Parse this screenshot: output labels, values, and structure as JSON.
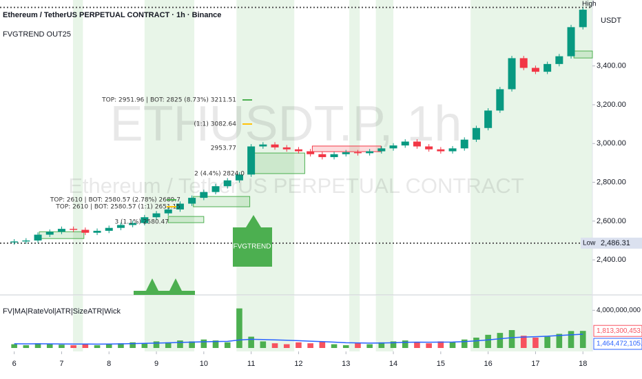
{
  "header": {
    "title": "Ethereum / TetherUS PERPETUAL CONTRACT · 1h · Binance",
    "indicator": "FVGTREND OUT25",
    "currency": "USDT"
  },
  "chart_data": [
    {
      "type": "candlestick",
      "watermark": "ETHUSDT.P, 1h",
      "watermark_subtitle": "Ethereum / TetherUS PERPETUAL CONTRACT",
      "x": [
        6,
        6.25,
        6.5,
        6.75,
        7,
        7.25,
        7.5,
        7.75,
        8,
        8.25,
        8.5,
        8.75,
        9,
        9.25,
        9.5,
        9.75,
        10,
        10.25,
        10.5,
        10.75,
        11,
        11.25,
        11.5,
        11.75,
        12,
        12.25,
        12.5,
        12.75,
        13,
        13.25,
        13.5,
        13.75,
        14,
        14.25,
        14.5,
        14.75,
        15,
        15.25,
        15.5,
        15.75,
        16,
        16.25,
        16.5,
        16.75,
        17,
        17.25,
        17.5,
        17.75,
        18
      ],
      "open": [
        2490,
        2495,
        2500,
        2530,
        2545,
        2560,
        2555,
        2540,
        2550,
        2565,
        2580,
        2590,
        2620,
        2640,
        2660,
        2690,
        2720,
        2750,
        2780,
        2810,
        2840,
        2985,
        2995,
        2980,
        2970,
        2960,
        2945,
        2930,
        2945,
        2955,
        2950,
        2960,
        2975,
        2990,
        3010,
        2985,
        2970,
        2960,
        2975,
        3020,
        3080,
        3170,
        3280,
        3440,
        3390,
        3370,
        3410,
        3450,
        3600
      ],
      "high": [
        2507,
        2512,
        2542,
        2557,
        2572,
        2572,
        2567,
        2562,
        2577,
        2592,
        2602,
        2632,
        2652,
        2672,
        2702,
        2732,
        2762,
        2792,
        2822,
        2852,
        2997,
        3007,
        3007,
        2992,
        2982,
        2972,
        2957,
        2957,
        2967,
        2967,
        2972,
        2987,
        3002,
        3022,
        3022,
        2997,
        2982,
        2987,
        3032,
        3092,
        3182,
        3292,
        3452,
        3452,
        3402,
        3422,
        3462,
        3612,
        3702
      ],
      "low": [
        2478,
        2483,
        2488,
        2518,
        2533,
        2543,
        2528,
        2528,
        2538,
        2553,
        2568,
        2578,
        2608,
        2628,
        2648,
        2678,
        2708,
        2738,
        2768,
        2798,
        2828,
        2973,
        2968,
        2958,
        2948,
        2933,
        2918,
        2918,
        2933,
        2938,
        2938,
        2948,
        2963,
        2978,
        2973,
        2958,
        2948,
        2948,
        2963,
        3008,
        3068,
        3158,
        3268,
        3378,
        3358,
        3358,
        3398,
        3438,
        3588
      ],
      "close": [
        2495,
        2500,
        2530,
        2545,
        2560,
        2555,
        2540,
        2550,
        2565,
        2580,
        2590,
        2620,
        2640,
        2660,
        2690,
        2720,
        2750,
        2780,
        2810,
        2840,
        2985,
        2995,
        2980,
        2970,
        2960,
        2945,
        2930,
        2945,
        2955,
        2950,
        2960,
        2975,
        2990,
        3010,
        2985,
        2970,
        2960,
        2975,
        3020,
        3080,
        3170,
        3280,
        3440,
        3390,
        3370,
        3410,
        3450,
        3600,
        3690
      ],
      "up_color": "#089981",
      "down_color": "#f23645",
      "xlim": [
        5.7,
        18.2
      ],
      "xticks": [
        6,
        7,
        8,
        9,
        10,
        11,
        12,
        13,
        14,
        15,
        16,
        17,
        18
      ],
      "ylim": [
        2230,
        3740
      ],
      "yticks": [
        {
          "value": 2400,
          "label": "2,400.00"
        },
        {
          "value": 2600,
          "label": "2,600.00"
        },
        {
          "value": 2800,
          "label": "2,800.00"
        },
        {
          "value": 3000,
          "label": "3,000.00"
        },
        {
          "value": 3200,
          "label": "3,200.00"
        },
        {
          "value": 3400,
          "label": "3,400.00"
        }
      ],
      "grid": false,
      "sessions": [
        [
          7.24,
          7.45
        ],
        [
          8.75,
          9.8
        ],
        [
          10.69,
          11.91
        ],
        [
          13.07,
          13.29
        ],
        [
          13.63,
          14.0
        ],
        [
          15.63,
          18.2
        ]
      ],
      "session_color": "#4caf50",
      "zones": [
        {
          "x": [
            6.53,
            7.47
          ],
          "y": [
            2510,
            2545
          ],
          "color": "#4caf50"
        },
        {
          "x": [
            9.25,
            10.0
          ],
          "y": [
            2592,
            2624
          ],
          "color": "#4caf50"
        },
        {
          "x": [
            9.78,
            10.97
          ],
          "y": [
            2674,
            2727
          ],
          "color": "#4caf50"
        },
        {
          "x": [
            11.05,
            12.13
          ],
          "y": [
            2845,
            2951
          ],
          "color": "#4caf50"
        },
        {
          "x": [
            12.29,
            13.74
          ],
          "y": [
            2958,
            2987
          ],
          "color": "#f23645"
        },
        {
          "x": [
            17.81,
            18.2
          ],
          "y": [
            3441,
            3477
          ],
          "color": "#4caf50"
        }
      ],
      "annotations": [
        "TOP: 2951.96 | BOT: 2825 (8.73%) 3211.51",
        "(1:1) 3082.64",
        "2953.77",
        "2 (4.4%) 2824.0",
        "TOP: 2610 | BOT: 2580.57 (2.78%) 2689.7",
        "TOP: 2610 | BOT: 2580.57 (1:1) 2651.15",
        "3 (1.1%) 2580.47"
      ],
      "signal_label": "FVGTREND",
      "high_label": "High",
      "low_label": "Low",
      "low_level": {
        "value": 2486.31,
        "label": "2,486.31"
      }
    },
    {
      "type": "bar",
      "title": "FV|MA|RateVol|ATR|SizeATR|Wick",
      "values": [
        400000000.0,
        300000000.0,
        500000000.0,
        400000000.0,
        350000000.0,
        300000000.0,
        400000000.0,
        300000000.0,
        450000000.0,
        500000000.0,
        600000000.0,
        500000000.0,
        700000000.0,
        600000000.0,
        800000000.0,
        700000000.0,
        900000000.0,
        800000000.0,
        600000000.0,
        4200000000.0,
        1200000000.0,
        700000000.0,
        500000000.0,
        400000000.0,
        600000000.0,
        500000000.0,
        700000000.0,
        400000000.0,
        300000000.0,
        500000000.0,
        400000000.0,
        600000000.0,
        700000000.0,
        800000000.0,
        600000000.0,
        500000000.0,
        700000000.0,
        600000000.0,
        900000000.0,
        1100000000.0,
        1400000000.0,
        1600000000.0,
        1900000000.0,
        1300000000.0,
        1100000000.0,
        1200000000.0,
        1500000000.0,
        1800000000.0,
        1813300453.01
      ],
      "last_label": "1,813,300,453.01",
      "up_color": "#4caf50",
      "down_color": "#f7525f",
      "line": {
        "color": "#2962ff",
        "values": [
          450000000.0,
          440000000.0,
          450000000.0,
          440000000.0,
          430000000.0,
          420000000.0,
          420000000.0,
          410000000.0,
          420000000.0,
          440000000.0,
          470000000.0,
          490000000.0,
          520000000.0,
          550000000.0,
          590000000.0,
          620000000.0,
          660000000.0,
          690000000.0,
          700000000.0,
          850000000.0,
          920000000.0,
          900000000.0,
          860000000.0,
          820000000.0,
          780000000.0,
          720000000.0,
          680000000.0,
          620000000.0,
          560000000.0,
          540000000.0,
          520000000.0,
          530000000.0,
          560000000.0,
          600000000.0,
          620000000.0,
          610000000.0,
          620000000.0,
          630000000.0,
          680000000.0,
          760000000.0,
          860000000.0,
          980000000.0,
          1100000000.0,
          1160000000.0,
          1200000000.0,
          1250000000.0,
          1330000000.0,
          1400000000.0,
          1464472105.49
        ],
        "last_label": "1,464,472,105.49"
      },
      "ylim": [
        0,
        4900000000
      ],
      "yticks": [
        {
          "value": 4000000000,
          "label": "4,000,000,000"
        }
      ]
    }
  ]
}
